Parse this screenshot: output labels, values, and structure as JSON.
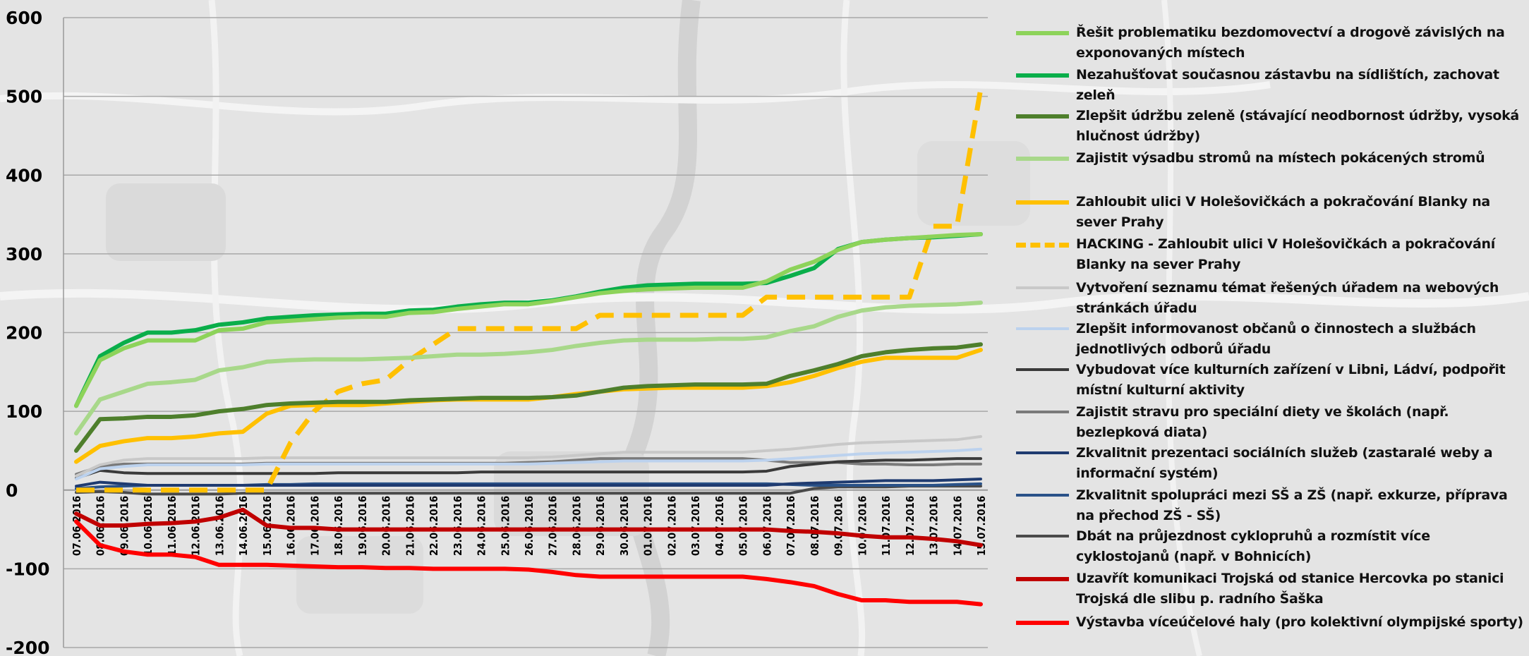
{
  "chart_data": {
    "type": "line",
    "title": "",
    "xlabel": "",
    "ylabel": "",
    "ylim": [
      -200,
      600
    ],
    "yticks": [
      600,
      500,
      400,
      300,
      200,
      100,
      0,
      -100,
      -200
    ],
    "grid": true,
    "legend_position": "right",
    "categories": [
      "07.06.2016",
      "08.06.2016",
      "09.06.2016",
      "10.06.2016",
      "11.06.2016",
      "12.06.2016",
      "13.06.2016",
      "14.06.2016",
      "15.06.2016",
      "16.06.2016",
      "17.06.2016",
      "18.06.2016",
      "19.06.2016",
      "20.06.2016",
      "21.06.2016",
      "22.06.2016",
      "23.06.2016",
      "24.06.2016",
      "25.06.2016",
      "26.06.2016",
      "27.06.2016",
      "28.06.2016",
      "29.06.2016",
      "30.06.2016",
      "01.07.2016",
      "02.07.2016",
      "03.07.2016",
      "04.07.2016",
      "05.07.2016",
      "06.07.2016",
      "07.07.2016",
      "08.07.2016",
      "09.07.2016",
      "10.07.2016",
      "11.07.2016",
      "12.07.2016",
      "13.07.2016",
      "14.07.2016",
      "15.07.2016"
    ],
    "series": [
      {
        "name": "Řešit problematiku bezdomovectví a drogově závislých na exponovaných místech",
        "color": "#8dd35a",
        "width": 6,
        "dash": false,
        "values": [
          107,
          165,
          180,
          190,
          190,
          190,
          203,
          205,
          213,
          215,
          217,
          219,
          220,
          220,
          225,
          226,
          230,
          233,
          236,
          236,
          240,
          245,
          250,
          253,
          255,
          256,
          257,
          257,
          257,
          265,
          280,
          290,
          305,
          315,
          318,
          320,
          322,
          324,
          325
        ]
      },
      {
        "name": "Nezahušťovat současnou zástavbu na sídlištích, zachovat zeleň",
        "color": "#0aae4a",
        "width": 6,
        "dash": false,
        "values": [
          107,
          170,
          187,
          200,
          200,
          203,
          210,
          213,
          218,
          220,
          222,
          223,
          224,
          224,
          228,
          229,
          233,
          236,
          238,
          238,
          241,
          246,
          252,
          257,
          260,
          261,
          262,
          262,
          262,
          263,
          272,
          282,
          306,
          315,
          318,
          320,
          321,
          323,
          325
        ]
      },
      {
        "name": "Zlepšit údržbu zeleně (stávající neodbornost údržby,  vysoká hlučnost údržby)",
        "color": "#4e7f2c",
        "width": 6,
        "dash": false,
        "values": [
          50,
          90,
          91,
          93,
          93,
          95,
          100,
          103,
          108,
          110,
          111,
          112,
          112,
          112,
          114,
          115,
          116,
          117,
          117,
          117,
          118,
          120,
          125,
          130,
          132,
          133,
          134,
          134,
          134,
          135,
          145,
          152,
          160,
          170,
          175,
          178,
          180,
          181,
          185
        ]
      },
      {
        "name": "Zajistit výsadbu stromů na místech pokácených stromů",
        "color": "#a8d88a",
        "width": 6,
        "dash": false,
        "values": [
          72,
          115,
          125,
          135,
          137,
          140,
          152,
          156,
          163,
          165,
          166,
          166,
          166,
          167,
          168,
          170,
          172,
          172,
          173,
          175,
          178,
          183,
          187,
          190,
          191,
          191,
          191,
          192,
          192,
          194,
          202,
          208,
          220,
          228,
          232,
          234,
          235,
          236,
          238
        ]
      },
      {
        "name": "Zahloubit ulici V Holešovičkách a pokračování Blanky na sever Prahy",
        "color": "#ffc000",
        "width": 6,
        "dash": false,
        "values": [
          36,
          56,
          62,
          66,
          66,
          68,
          72,
          74,
          97,
          107,
          108,
          108,
          108,
          110,
          112,
          114,
          115,
          115,
          115,
          115,
          118,
          122,
          125,
          128,
          129,
          130,
          130,
          130,
          130,
          132,
          137,
          145,
          155,
          163,
          168,
          168,
          168,
          168,
          178
        ]
      },
      {
        "name": "HACKING - Zahloubit ulici V Holešovičkách a pokračování Blanky na sever Prahy",
        "color": "#ffc000",
        "width": 7,
        "dash": true,
        "values": [
          0,
          0,
          0,
          0,
          0,
          0,
          0,
          0,
          0,
          60,
          100,
          125,
          135,
          140,
          165,
          185,
          205,
          205,
          205,
          205,
          205,
          205,
          222,
          222,
          222,
          222,
          222,
          222,
          222,
          245,
          245,
          245,
          245,
          245,
          245,
          245,
          335,
          335,
          510
        ]
      },
      {
        "name": "Vytvoření seznamu témat řešených úřadem na webových stránkách úřadu",
        "color": "#c8c8c8",
        "width": 4,
        "dash": false,
        "values": [
          18,
          32,
          38,
          40,
          40,
          40,
          40,
          40,
          41,
          41,
          41,
          41,
          41,
          41,
          41,
          41,
          41,
          41,
          41,
          41,
          42,
          44,
          46,
          48,
          48,
          48,
          48,
          48,
          48,
          50,
          52,
          55,
          58,
          60,
          61,
          62,
          63,
          64,
          68
        ]
      },
      {
        "name": "Zlepšit informovanost občanů o činnostech a službách jednotlivých odborů úřadu",
        "color": "#bcd2ee",
        "width": 4,
        "dash": false,
        "values": [
          14,
          27,
          30,
          32,
          32,
          32,
          32,
          32,
          33,
          33,
          33,
          33,
          33,
          33,
          33,
          33,
          33,
          33,
          33,
          33,
          34,
          35,
          36,
          37,
          37,
          37,
          37,
          37,
          37,
          38,
          40,
          42,
          44,
          46,
          47,
          48,
          49,
          50,
          52
        ]
      },
      {
        "name": "Vybudovat více kulturních zařízení v Libni, Ládví, podpořit místní kulturní aktivity",
        "color": "#3a3a3a",
        "width": 4,
        "dash": false,
        "values": [
          15,
          25,
          22,
          21,
          21,
          21,
          21,
          21,
          21,
          21,
          21,
          22,
          22,
          22,
          22,
          22,
          22,
          23,
          23,
          23,
          23,
          23,
          23,
          23,
          23,
          23,
          23,
          23,
          23,
          24,
          30,
          33,
          36,
          37,
          38,
          38,
          39,
          40,
          40
        ]
      },
      {
        "name": "Zajistit stravu pro speciální diety ve školách (např. bezlepková diata)",
        "color": "#7a7a7a",
        "width": 4,
        "dash": false,
        "values": [
          20,
          30,
          33,
          33,
          33,
          33,
          33,
          33,
          34,
          34,
          34,
          34,
          34,
          34,
          34,
          34,
          34,
          34,
          34,
          35,
          36,
          38,
          40,
          40,
          40,
          40,
          40,
          40,
          40,
          38,
          35,
          35,
          35,
          33,
          33,
          32,
          32,
          33,
          33
        ]
      },
      {
        "name": "Zkvalitnit prezentaci sociálních služeb (zastaralé weby a informační systém)",
        "color": "#1f3b70",
        "width": 4,
        "dash": false,
        "values": [
          5,
          10,
          8,
          6,
          6,
          6,
          6,
          6,
          6,
          6,
          6,
          6,
          6,
          6,
          6,
          6,
          6,
          6,
          6,
          6,
          6,
          6,
          6,
          6,
          6,
          6,
          6,
          6,
          6,
          6,
          8,
          9,
          10,
          11,
          12,
          12,
          12,
          13,
          14
        ]
      },
      {
        "name": "Zkvalitnit spolupráci mezi SŠ a ZŠ (např. exkurze, příprava na přechod ZŠ - SŠ)",
        "color": "#2a5288",
        "width": 4,
        "dash": false,
        "values": [
          2,
          4,
          5,
          6,
          6,
          6,
          6,
          6,
          7,
          7,
          8,
          8,
          8,
          8,
          8,
          8,
          8,
          8,
          8,
          8,
          8,
          8,
          8,
          8,
          8,
          8,
          8,
          8,
          8,
          8,
          7,
          6,
          6,
          6,
          6,
          6,
          6,
          7,
          8
        ]
      },
      {
        "name": "Dbát na průjezdnost cyklopruhů a rozmístit více cyklostojanů (např. v Bohnicích)",
        "color": "#4a4a4a",
        "width": 4,
        "dash": false,
        "values": [
          -3,
          -2,
          -3,
          -5,
          -5,
          -5,
          -5,
          -4,
          -4,
          -4,
          -4,
          -4,
          -4,
          -4,
          -4,
          -4,
          -4,
          -4,
          -4,
          -4,
          -4,
          -4,
          -4,
          -4,
          -4,
          -4,
          -4,
          -4,
          -4,
          -4,
          -4,
          2,
          4,
          4,
          4,
          5,
          5,
          5,
          5
        ]
      },
      {
        "name": "Uzavřít komunikaci Trojská od stanice Hercovka po stanici Trojská dle slibu p. radního Šaška",
        "color": "#c00000",
        "width": 6,
        "dash": false,
        "values": [
          -30,
          -45,
          -45,
          -43,
          -42,
          -40,
          -35,
          -25,
          -45,
          -48,
          -48,
          -50,
          -50,
          -50,
          -50,
          -50,
          -50,
          -50,
          -50,
          -50,
          -50,
          -50,
          -50,
          -50,
          -50,
          -50,
          -50,
          -50,
          -50,
          -50,
          -52,
          -53,
          -55,
          -58,
          -60,
          -60,
          -62,
          -65,
          -70
        ]
      },
      {
        "name": "Výstavba víceúčelové haly (pro kolektivní olympijské sporty)",
        "color": "#ff0000",
        "width": 6,
        "dash": false,
        "values": [
          -40,
          -70,
          -78,
          -82,
          -82,
          -85,
          -95,
          -95,
          -95,
          -96,
          -97,
          -98,
          -98,
          -99,
          -99,
          -100,
          -100,
          -100,
          -100,
          -101,
          -104,
          -108,
          -110,
          -110,
          -110,
          -110,
          -110,
          -110,
          -110,
          -113,
          -117,
          -122,
          -132,
          -140,
          -140,
          -142,
          -142,
          -142,
          -145
        ]
      }
    ]
  }
}
